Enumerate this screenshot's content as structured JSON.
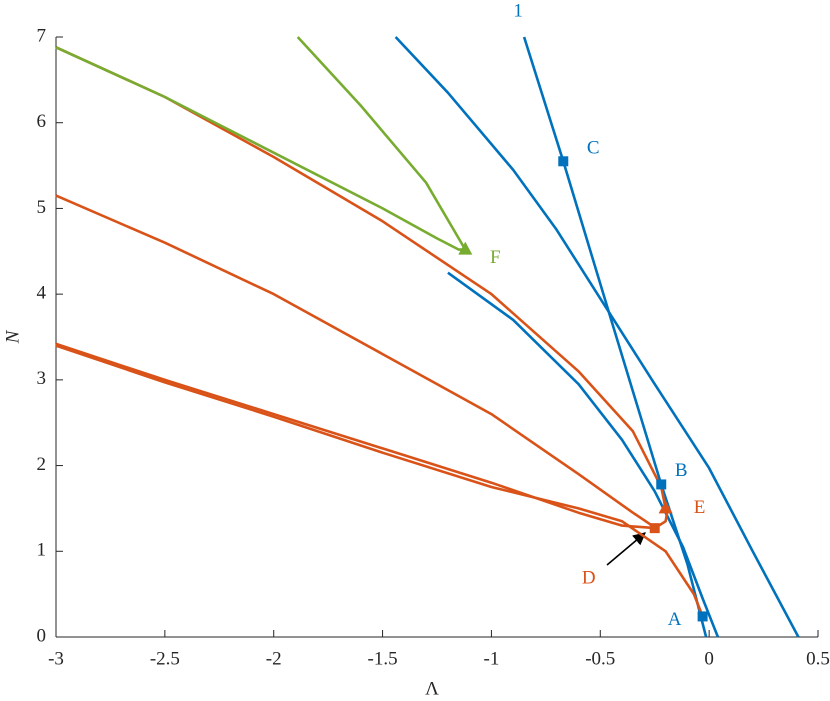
{
  "chart_data": {
    "type": "line",
    "x_label": "Λ",
    "y_label": "N",
    "xlim": [
      -3,
      0.5
    ],
    "ylim": [
      0,
      7
    ],
    "xticks": [
      -3,
      -2.5,
      -2,
      -1.5,
      -1,
      -0.5,
      0,
      0.5
    ],
    "yticks": [
      0,
      1,
      2,
      3,
      4,
      5,
      6,
      7
    ],
    "series": [
      {
        "name": "1",
        "color": "#0072bd",
        "x": [
          -0.85,
          -0.67,
          -0.45,
          -0.22,
          -0.1,
          -0.014
        ],
        "values": [
          7,
          5.55,
          3.7,
          1.78,
          0.85,
          0
        ]
      },
      {
        "color": "#0072bd",
        "x": [
          -1.44,
          -1.2,
          -0.9,
          -0.7,
          -0.48,
          -0.25,
          0,
          0.2,
          0.41
        ],
        "values": [
          7,
          6.35,
          5.45,
          4.75,
          3.87,
          2.95,
          1.97,
          1.0,
          0
        ]
      },
      {
        "color": "#0072bd",
        "x": [
          -1.2,
          -0.9,
          -0.6,
          -0.4,
          -0.25,
          -0.12,
          -0.03,
          0.04
        ],
        "values": [
          4.25,
          3.7,
          2.95,
          2.3,
          1.7,
          1.05,
          0.45,
          0
        ]
      },
      {
        "color": "#d95319",
        "x": [
          -3,
          -2.5,
          -2,
          -1.5,
          -1,
          -0.6,
          -0.35,
          -0.22,
          -0.2
        ],
        "values": [
          6.88,
          6.3,
          5.6,
          4.85,
          4.0,
          3.1,
          2.4,
          1.75,
          1.5
        ]
      },
      {
        "color": "#d95319",
        "x": [
          -3,
          -2.5,
          -2,
          -1.5,
          -1,
          -0.6,
          -0.35,
          -0.25
        ],
        "values": [
          5.15,
          4.6,
          4.0,
          3.3,
          2.6,
          1.9,
          1.45,
          1.28
        ]
      },
      {
        "color": "#d95319",
        "x": [
          -3,
          -2.5,
          -2,
          -1.5,
          -1,
          -0.6,
          -0.4,
          -0.25,
          -0.2,
          -0.19
        ],
        "values": [
          3.42,
          3.0,
          2.6,
          2.2,
          1.8,
          1.45,
          1.3,
          1.27,
          1.35,
          1.5
        ]
      },
      {
        "color": "#d95319",
        "x": [
          -3,
          -2.5,
          -2,
          -1.5,
          -1,
          -0.6,
          -0.4,
          -0.2,
          -0.07,
          -0.03
        ],
        "values": [
          3.4,
          2.97,
          2.57,
          2.15,
          1.75,
          1.5,
          1.35,
          1.0,
          0.5,
          0.24
        ]
      },
      {
        "color": "#77ac30",
        "x": [
          -3,
          -2.5,
          -2,
          -1.5,
          -1.25,
          -1.15,
          -1.12,
          -1.3,
          -1.6,
          -1.89
        ],
        "values": [
          6.88,
          6.3,
          5.65,
          5.0,
          4.65,
          4.52,
          4.52,
          5.3,
          6.2,
          7
        ]
      }
    ],
    "markers": [
      {
        "label": "C",
        "x": -0.67,
        "y": 5.55,
        "color": "#0072bd",
        "shape": "square"
      },
      {
        "label": "B",
        "x": -0.22,
        "y": 1.78,
        "color": "#0072bd",
        "shape": "square"
      },
      {
        "label": "A",
        "x": -0.03,
        "y": 0.24,
        "color": "#0072bd",
        "shape": "square"
      },
      {
        "label": "D",
        "x": -0.25,
        "y": 1.27,
        "color": "#d95319",
        "shape": "square"
      },
      {
        "label": "E",
        "x": -0.2,
        "y": 1.5,
        "color": "#d95319",
        "shape": "triangle"
      },
      {
        "label": "F",
        "x": -1.12,
        "y": 4.52,
        "color": "#77ac30",
        "shape": "triangle"
      }
    ]
  }
}
